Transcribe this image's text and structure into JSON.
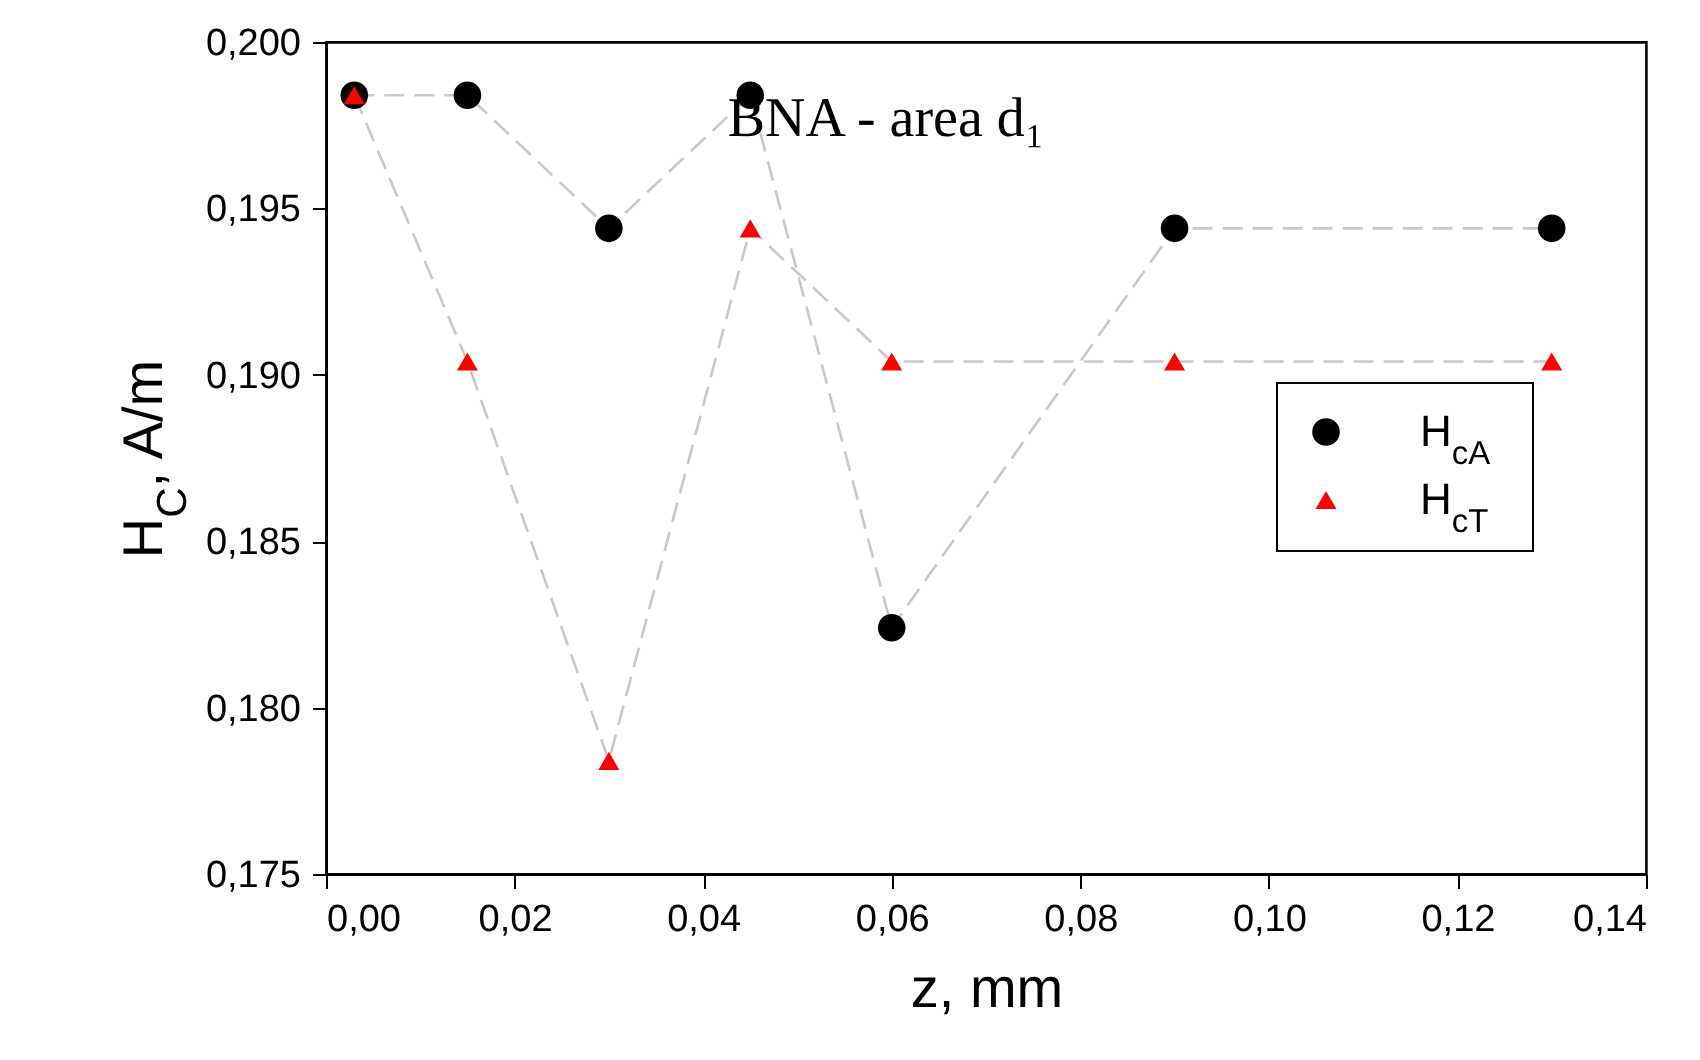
{
  "chart_data": {
    "type": "line",
    "title": "BNA - area d₁",
    "xlabel": "z, mm",
    "ylabel": "H$_{C}$, A/m",
    "x": [
      0.003,
      0.015,
      0.03,
      0.045,
      0.06,
      0.09,
      0.13
    ],
    "series": [
      {
        "name": "H$_{cA}$",
        "color": "#000000",
        "marker": "circle",
        "values": [
          0.1984,
          0.1984,
          0.1944,
          0.1984,
          0.1824,
          0.1944,
          0.1944
        ]
      },
      {
        "name": "H$_{cT}$",
        "color": "#ff0000",
        "marker": "triangle",
        "values": [
          0.1984,
          0.1904,
          0.1784,
          0.1944,
          0.1904,
          0.1904,
          0.1904
        ]
      }
    ],
    "xlim": [
      0,
      0.14
    ],
    "xticks": [
      {
        "value": 0,
        "label": "0,00"
      },
      {
        "value": 0.02,
        "label": "0,02"
      },
      {
        "value": 0.04,
        "label": "0,04"
      },
      {
        "value": 0.06,
        "label": "0,06"
      },
      {
        "value": 0.08,
        "label": "0,08"
      },
      {
        "value": 0.1,
        "label": "0,10"
      },
      {
        "value": 0.12,
        "label": "0,12"
      },
      {
        "value": 0.14,
        "label": "0,14"
      }
    ],
    "ylim": [
      0.175,
      0.2
    ],
    "yticks": [
      {
        "value": 0.175,
        "label": "0,175"
      },
      {
        "value": 0.18,
        "label": "0,180"
      },
      {
        "value": 0.185,
        "label": "0,185"
      },
      {
        "value": 0.19,
        "label": "0,190"
      },
      {
        "value": 0.195,
        "label": "0,195"
      },
      {
        "value": 0.2,
        "label": "0,200"
      }
    ],
    "grid": false,
    "legend": "right",
    "line_style": "dashed"
  }
}
